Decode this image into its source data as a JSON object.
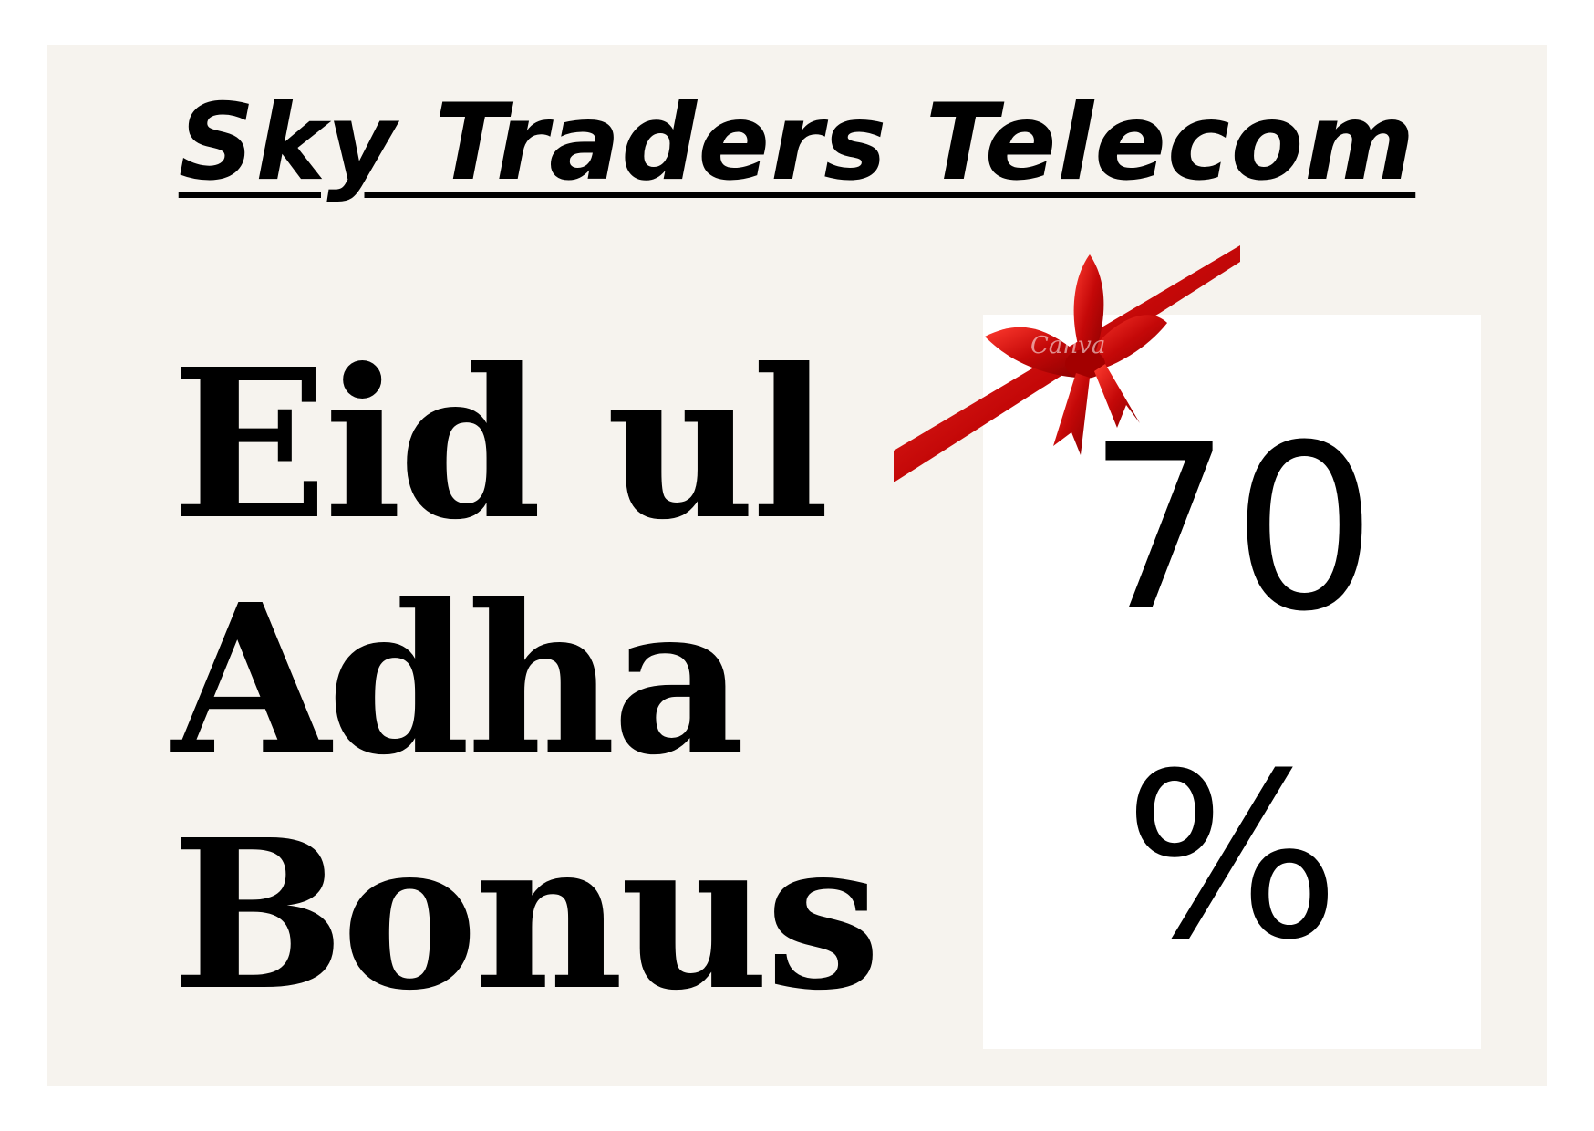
{
  "header": {
    "title": "Sky Traders Telecom"
  },
  "headline": {
    "lines": [
      "Eid ul",
      "Adha",
      "Bonus"
    ]
  },
  "offer": {
    "value": "70",
    "unit": "%"
  },
  "decoration": {
    "ribbon_icon": "gift-ribbon-bow-icon",
    "ribbon_color": "#d10f0f",
    "watermark": "Canva"
  },
  "colors": {
    "page_background": "#ffffff",
    "poster_background": "#f6f3ee",
    "offer_box": "#ffffff",
    "text": "#000000"
  }
}
